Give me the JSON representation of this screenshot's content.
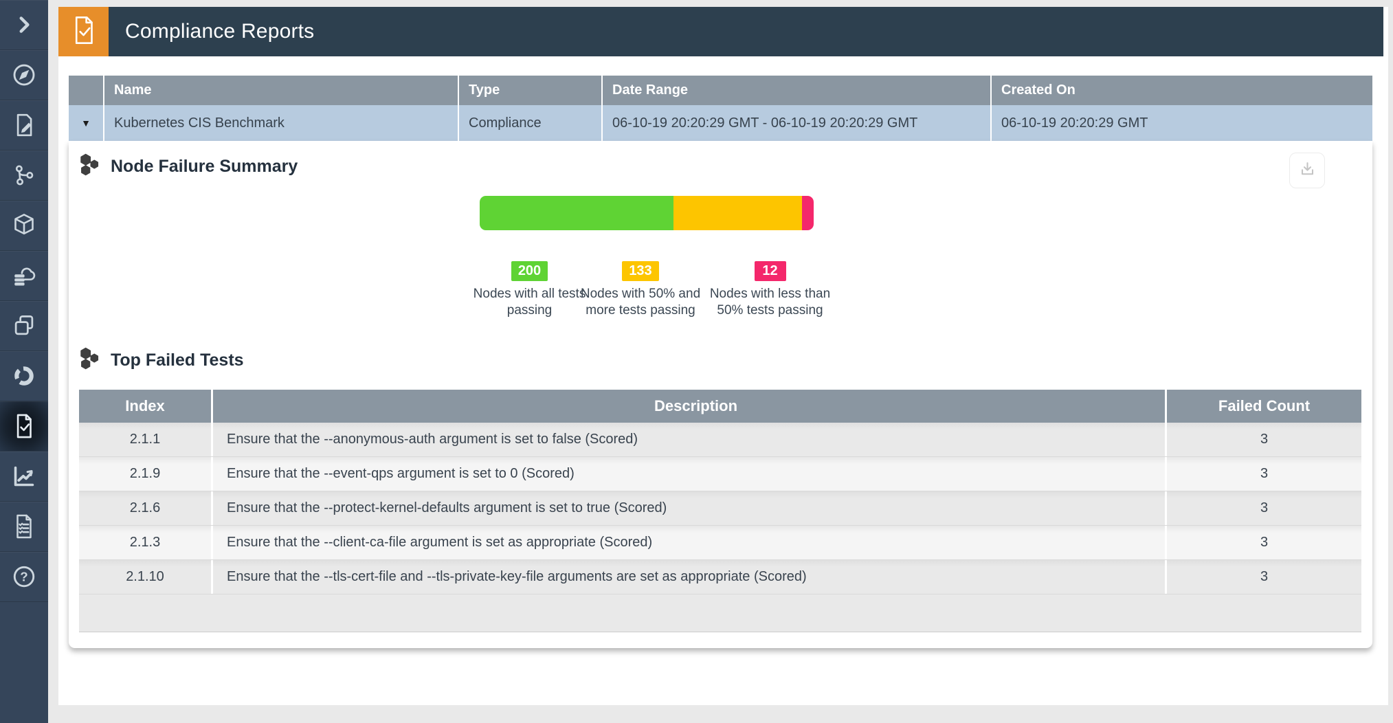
{
  "page": {
    "title": "Compliance Reports",
    "title_icon": "document-check-icon"
  },
  "sidebar": {
    "items": [
      {
        "icon": "chevron-right-icon",
        "active": false
      },
      {
        "icon": "compass-icon",
        "active": false
      },
      {
        "icon": "document-edit-icon",
        "active": false
      },
      {
        "icon": "network-nodes-icon",
        "active": false
      },
      {
        "icon": "cube-icon",
        "active": false
      },
      {
        "icon": "cloud-database-icon",
        "active": false
      },
      {
        "icon": "layers-icon",
        "active": false
      },
      {
        "icon": "donut-chart-icon",
        "active": false
      },
      {
        "icon": "document-check-icon",
        "active": true
      },
      {
        "icon": "chart-line-icon",
        "active": false
      },
      {
        "icon": "document-checklist-icon",
        "active": false
      },
      {
        "icon": "help-icon",
        "active": false
      }
    ]
  },
  "report_table": {
    "columns": [
      "Name",
      "Type",
      "Date Range",
      "Created On"
    ],
    "row": {
      "expander": "▼",
      "name": "Kubernetes CIS Benchmark",
      "type": "Compliance",
      "date_range": "06-10-19 20:20:29 GMT - 06-10-19 20:20:29 GMT",
      "created_on": "06-10-19 20:20:29 GMT"
    }
  },
  "sections": {
    "node_failure_summary": {
      "title": "Node Failure Summary",
      "icon": "hexagon-cluster-icon"
    },
    "top_failed_tests": {
      "title": "Top Failed Tests",
      "icon": "hexagon-cluster-icon"
    }
  },
  "toolbar": {
    "download_icon": "download-icon"
  },
  "chart_data": {
    "type": "bar",
    "stacked": true,
    "title": "Node Failure Summary",
    "series": [
      {
        "name": "Nodes with all tests passing",
        "value": 200,
        "color": "#5fd334"
      },
      {
        "name": "Nodes with 50% and more tests passing",
        "value": 133,
        "color": "#fdc500"
      },
      {
        "name": "Nodes with less than 50% tests passing",
        "value": 12,
        "color": "#f4276b"
      }
    ]
  },
  "failed_table": {
    "columns": [
      "Index",
      "Description",
      "Failed Count"
    ],
    "rows": [
      {
        "index": "2.1.1",
        "description": "Ensure that the --anonymous-auth argument is set to false (Scored)",
        "failed_count": "3"
      },
      {
        "index": "2.1.9",
        "description": "Ensure that the --event-qps argument is set to 0 (Scored)",
        "failed_count": "3"
      },
      {
        "index": "2.1.6",
        "description": "Ensure that the --protect-kernel-defaults argument is set to true (Scored)",
        "failed_count": "3"
      },
      {
        "index": "2.1.3",
        "description": "Ensure that the --client-ca-file argument is set as appropriate (Scored)",
        "failed_count": "3"
      },
      {
        "index": "2.1.10",
        "description": "Ensure that the --tls-cert-file and --tls-private-key-file arguments are set as appropriate (Scored)",
        "failed_count": "3"
      }
    ]
  },
  "colors": {
    "accent_orange": "#e78e2a",
    "header_navy": "#2d404f",
    "sidebar_navy": "#35455a",
    "table_header_gray": "#8a96a1",
    "selected_row_blue": "#b7cbdf",
    "pass_green": "#5fd334",
    "warn_yellow": "#fdc500",
    "fail_pink": "#f4276b"
  }
}
